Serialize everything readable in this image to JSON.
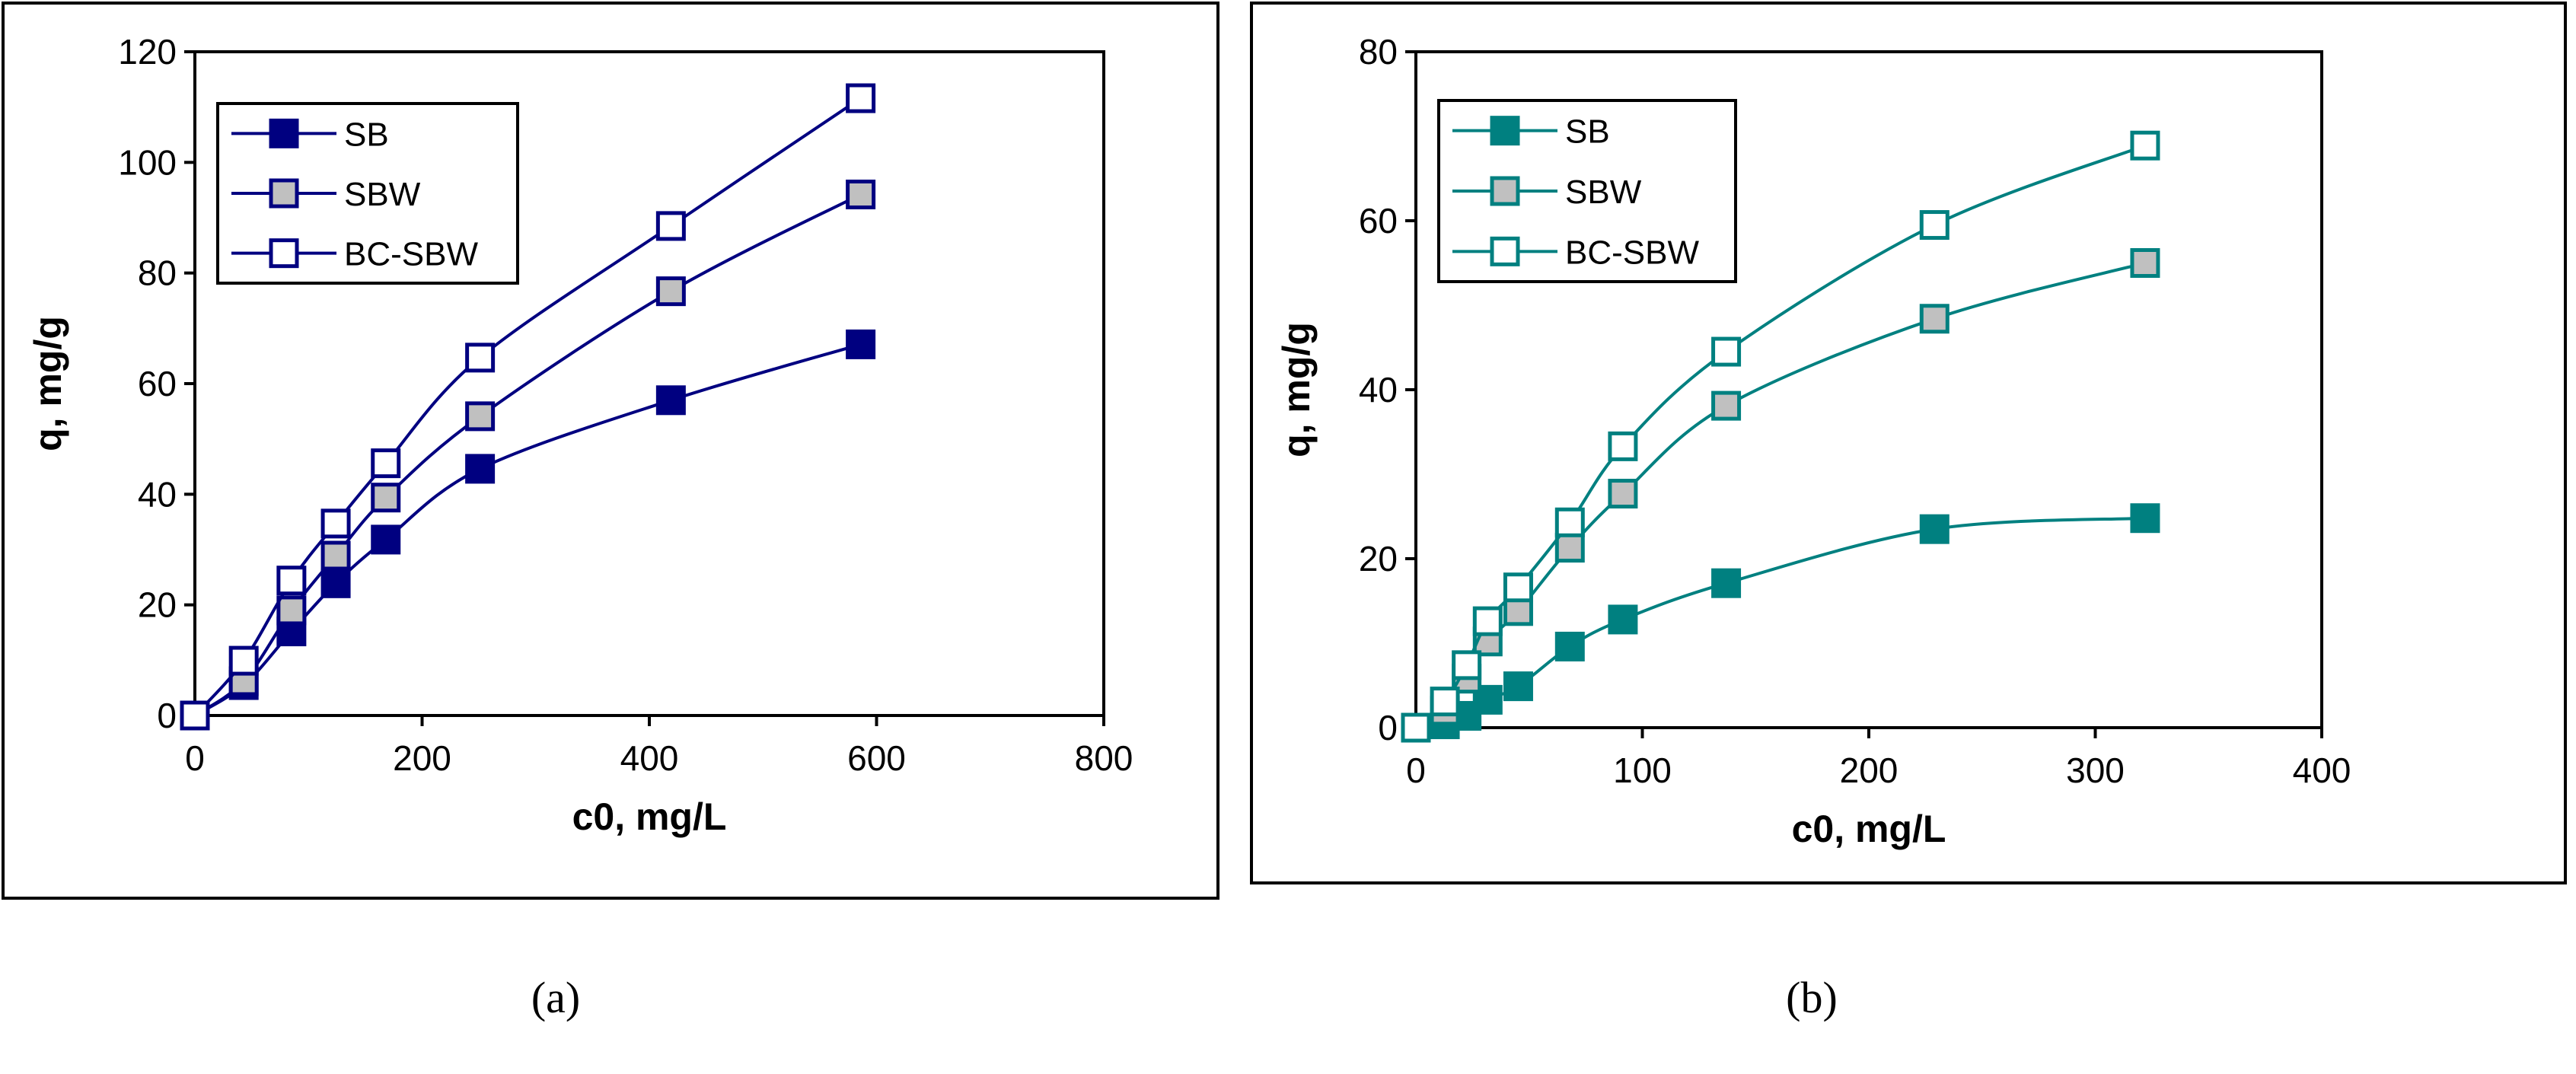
{
  "chart_data": [
    {
      "type": "line",
      "panel_label": "(a)",
      "xlabel": "c0, mg/L",
      "ylabel": "q, mg/g",
      "xlim": [
        0,
        800
      ],
      "ylim": [
        0,
        120
      ],
      "xticks": [
        0,
        200,
        400,
        600,
        800
      ],
      "yticks": [
        0,
        20,
        40,
        60,
        80,
        100,
        120
      ],
      "grid": false,
      "legend_position": "top-left",
      "color": "#000080",
      "series": [
        {
          "name": "SB",
          "marker": "filled",
          "x": [
            0,
            43,
            85,
            124,
            168,
            251,
            419,
            586
          ],
          "y": [
            0,
            5.5,
            15.2,
            23.9,
            31.8,
            44.6,
            57.0,
            67.1
          ]
        },
        {
          "name": "SBW",
          "marker": "gray",
          "x": [
            0,
            43,
            85,
            124,
            168,
            251,
            419,
            586
          ],
          "y": [
            0,
            6.2,
            19.0,
            28.9,
            39.4,
            54.1,
            76.7,
            94.2
          ]
        },
        {
          "name": "BC-SBW",
          "marker": "open",
          "x": [
            0,
            43,
            85,
            124,
            168,
            251,
            419,
            586
          ],
          "y": [
            0,
            9.9,
            24.4,
            34.7,
            45.6,
            64.7,
            88.5,
            111.6
          ]
        }
      ]
    },
    {
      "type": "line",
      "panel_label": "(b)",
      "xlabel": "c0, mg/L",
      "ylabel": "q, mg/g",
      "xlim": [
        0,
        400
      ],
      "ylim": [
        0,
        80
      ],
      "xticks": [
        0,
        100,
        200,
        300,
        400
      ],
      "yticks": [
        0,
        20,
        40,
        60,
        80
      ],
      "grid": false,
      "legend_position": "top-left",
      "color": "#008080",
      "series": [
        {
          "name": "SB",
          "marker": "filled",
          "x": [
            0,
            12.8,
            22.4,
            31.7,
            45.2,
            68,
            91.4,
            137,
            229,
            322
          ],
          "y": [
            0,
            0.4,
            1.4,
            3.3,
            4.9,
            9.6,
            12.8,
            17.1,
            23.5,
            24.8
          ]
        },
        {
          "name": "SBW",
          "marker": "gray",
          "x": [
            0,
            12.8,
            22.4,
            31.7,
            45.2,
            68,
            91.4,
            137,
            229,
            322
          ],
          "y": [
            0,
            2.0,
            5.8,
            10.2,
            13.8,
            21.3,
            27.7,
            38.1,
            48.4,
            55.0
          ]
        },
        {
          "name": "BC-SBW",
          "marker": "open",
          "x": [
            0,
            12.8,
            22.4,
            31.7,
            45.2,
            68,
            91.4,
            137,
            229,
            322
          ],
          "y": [
            0,
            3.1,
            7.4,
            12.6,
            16.6,
            24.3,
            33.3,
            44.5,
            59.5,
            68.9
          ]
        }
      ]
    }
  ]
}
